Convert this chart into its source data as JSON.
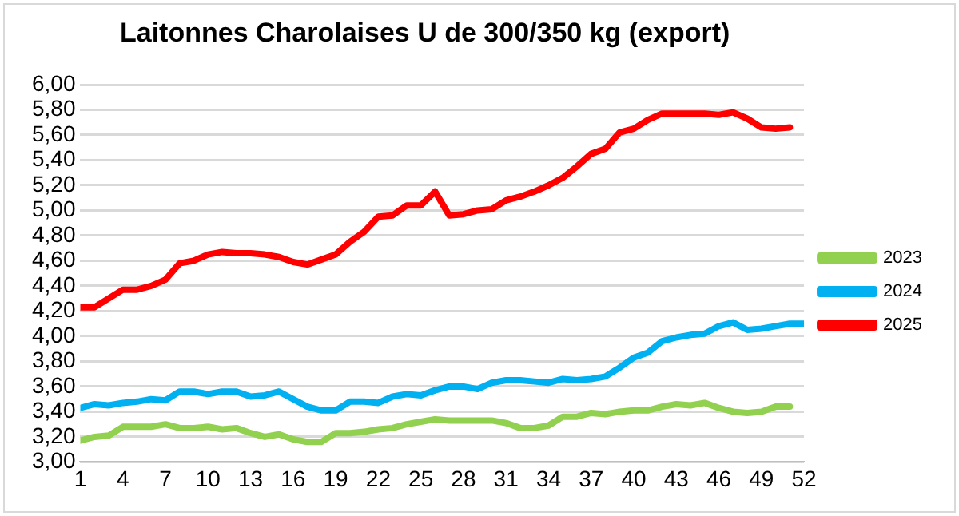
{
  "chart_data": {
    "type": "line",
    "title": "Laitonnes Charolaises U de 300/350 kg (export)",
    "x": [
      1,
      2,
      3,
      4,
      5,
      6,
      7,
      8,
      9,
      10,
      11,
      12,
      13,
      14,
      15,
      16,
      17,
      18,
      19,
      20,
      21,
      22,
      23,
      24,
      25,
      26,
      27,
      28,
      29,
      30,
      31,
      32,
      33,
      34,
      35,
      36,
      37,
      38,
      39,
      40,
      41,
      42,
      43,
      44,
      45,
      46,
      47,
      48,
      49,
      50,
      51,
      52
    ],
    "xlim": [
      1,
      52
    ],
    "xticks": [
      1,
      4,
      7,
      10,
      13,
      16,
      19,
      22,
      25,
      28,
      31,
      34,
      37,
      40,
      43,
      46,
      49,
      52
    ],
    "ylim": [
      3,
      6
    ],
    "yticks": [
      {
        "value": 3,
        "label": "3,00"
      },
      {
        "value": 3.2,
        "label": "3,20"
      },
      {
        "value": 3.4,
        "label": "3,40"
      },
      {
        "value": 3.6,
        "label": "3,60"
      },
      {
        "value": 3.8,
        "label": "3,80"
      },
      {
        "value": 4,
        "label": "4,00"
      },
      {
        "value": 4.2,
        "label": "4,20"
      },
      {
        "value": 4.4,
        "label": "4,40"
      },
      {
        "value": 4.6,
        "label": "4,60"
      },
      {
        "value": 4.8,
        "label": "4,80"
      },
      {
        "value": 5,
        "label": "5,00"
      },
      {
        "value": 5.2,
        "label": "5,20"
      },
      {
        "value": 5.4,
        "label": "5,40"
      },
      {
        "value": 5.6,
        "label": "5,60"
      },
      {
        "value": 5.8,
        "label": "5,80"
      },
      {
        "value": 6,
        "label": "6,00"
      }
    ],
    "grid": "y",
    "legend": "right",
    "marker": "none",
    "line_style": "solid",
    "series": [
      {
        "name": "2023",
        "color": "#92d050",
        "values": [
          3.17,
          3.2,
          3.21,
          3.28,
          3.28,
          3.28,
          3.3,
          3.27,
          3.27,
          3.28,
          3.26,
          3.27,
          3.23,
          3.2,
          3.22,
          3.18,
          3.16,
          3.16,
          3.23,
          3.23,
          3.24,
          3.26,
          3.27,
          3.3,
          3.32,
          3.34,
          3.33,
          3.33,
          3.33,
          3.33,
          3.31,
          3.27,
          3.27,
          3.29,
          3.36,
          3.36,
          3.39,
          3.38,
          3.4,
          3.41,
          3.41,
          3.44,
          3.46,
          3.45,
          3.47,
          3.43,
          3.4,
          3.39,
          3.4,
          3.44,
          3.44,
          null
        ]
      },
      {
        "name": "2024",
        "color": "#00b0f0",
        "values": [
          3.43,
          3.46,
          3.45,
          3.47,
          3.48,
          3.5,
          3.49,
          3.56,
          3.56,
          3.54,
          3.56,
          3.56,
          3.52,
          3.53,
          3.56,
          3.5,
          3.44,
          3.41,
          3.41,
          3.48,
          3.48,
          3.47,
          3.52,
          3.54,
          3.53,
          3.57,
          3.6,
          3.6,
          3.58,
          3.63,
          3.65,
          3.65,
          3.64,
          3.63,
          3.66,
          3.65,
          3.66,
          3.68,
          3.75,
          3.83,
          3.87,
          3.96,
          3.99,
          4.01,
          4.02,
          4.08,
          4.11,
          4.05,
          4.06,
          4.08,
          4.1,
          4.1
        ]
      },
      {
        "name": "2025",
        "color": "#ff0000",
        "values": [
          4.23,
          4.23,
          4.3,
          4.37,
          4.37,
          4.4,
          4.45,
          4.58,
          4.6,
          4.65,
          4.67,
          4.66,
          4.66,
          4.65,
          4.63,
          4.59,
          4.57,
          4.61,
          4.65,
          4.75,
          4.83,
          4.95,
          4.96,
          5.04,
          5.04,
          5.15,
          4.96,
          4.97,
          5.0,
          5.01,
          5.08,
          5.11,
          5.15,
          5.2,
          5.26,
          5.35,
          5.45,
          5.49,
          5.62,
          5.65,
          5.72,
          5.77,
          5.77,
          5.77,
          5.77,
          5.76,
          5.78,
          5.73,
          5.66,
          5.65,
          5.66,
          null
        ]
      }
    ]
  }
}
